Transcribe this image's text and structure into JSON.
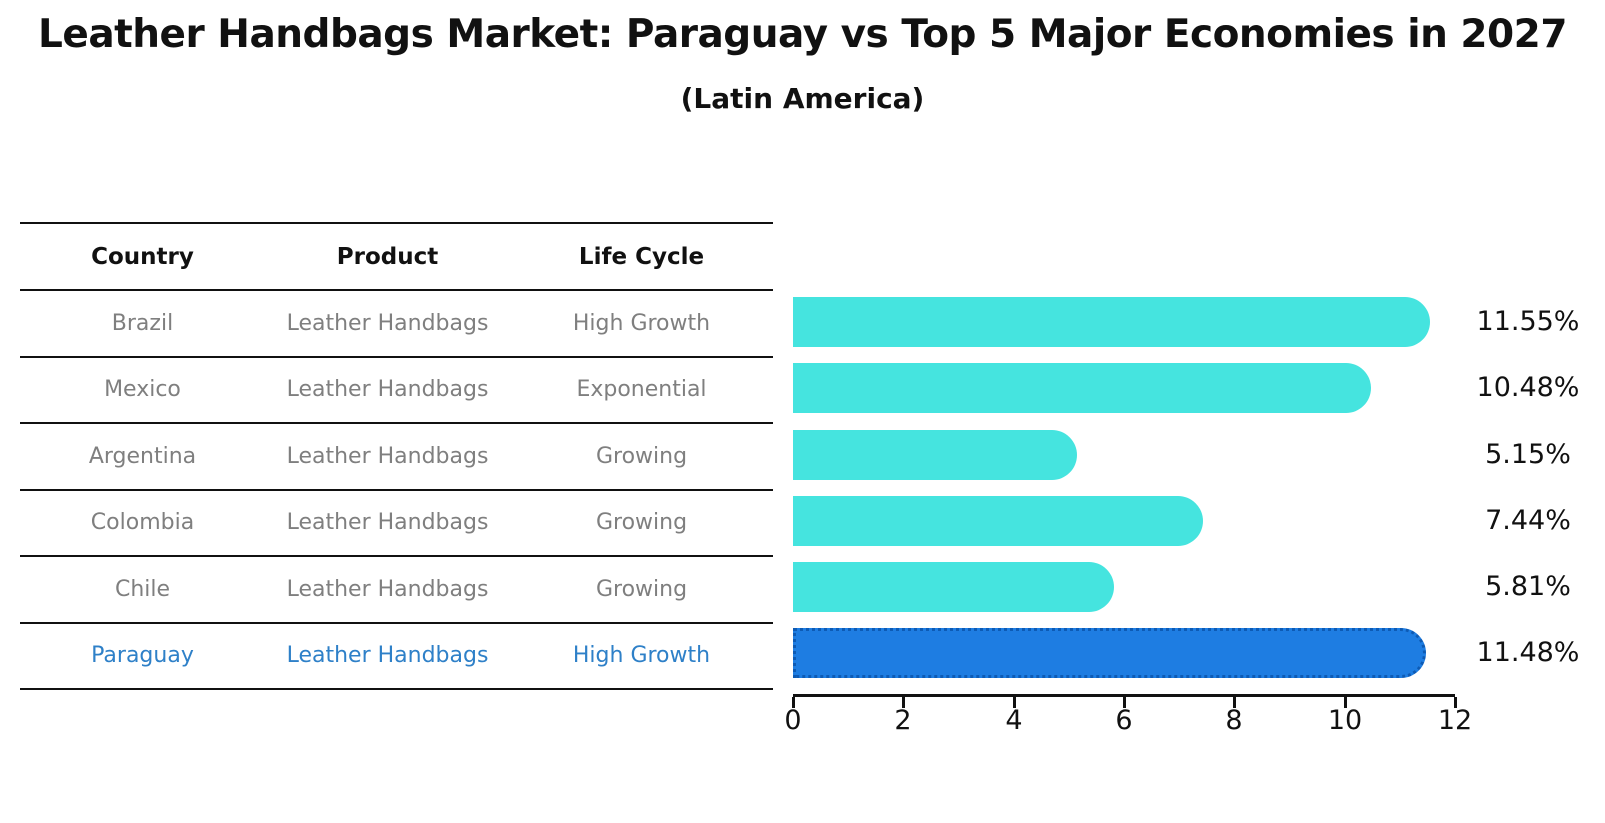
{
  "title": "Leather Handbags Market: Paraguay vs Top 5 Major Economies in 2027",
  "subtitle": "(Latin America)",
  "table": {
    "headers": [
      "Country",
      "Product",
      "Life Cycle"
    ],
    "rows": [
      {
        "country": "Brazil",
        "product": "Leather Handbags",
        "life_cycle": "High Growth"
      },
      {
        "country": "Mexico",
        "product": "Leather Handbags",
        "life_cycle": "Exponential"
      },
      {
        "country": "Argentina",
        "product": "Leather Handbags",
        "life_cycle": "Growing"
      },
      {
        "country": "Colombia",
        "product": "Leather Handbags",
        "life_cycle": "Growing"
      },
      {
        "country": "Chile",
        "product": "Leather Handbags",
        "life_cycle": "Growing"
      },
      {
        "country": "Paraguay",
        "product": "Leather Handbags",
        "life_cycle": "High Growth"
      }
    ],
    "highlighted_country": "Paraguay"
  },
  "chart_data": {
    "type": "bar",
    "orientation": "horizontal",
    "categories": [
      "Brazil",
      "Mexico",
      "Argentina",
      "Colombia",
      "Chile",
      "Paraguay"
    ],
    "values": [
      11.55,
      10.48,
      5.15,
      7.44,
      5.81,
      11.48
    ],
    "value_labels": [
      "11.55%",
      "10.48%",
      "5.15%",
      "7.44%",
      "5.81%",
      "11.48%"
    ],
    "xlim": [
      0,
      12
    ],
    "x_ticks": [
      "0",
      "2",
      "4",
      "6",
      "8",
      "10",
      "12"
    ],
    "grid": false,
    "legend": false,
    "highlight_index": 5,
    "bar_color": "#45e4df",
    "highlight_bar_color": "#1e7de2",
    "highlight_edge_color": "#0d5bb5",
    "highlight_text_color": "#2e80c8",
    "label_color": "#111111",
    "row_text_color": "#7f7f7f"
  }
}
